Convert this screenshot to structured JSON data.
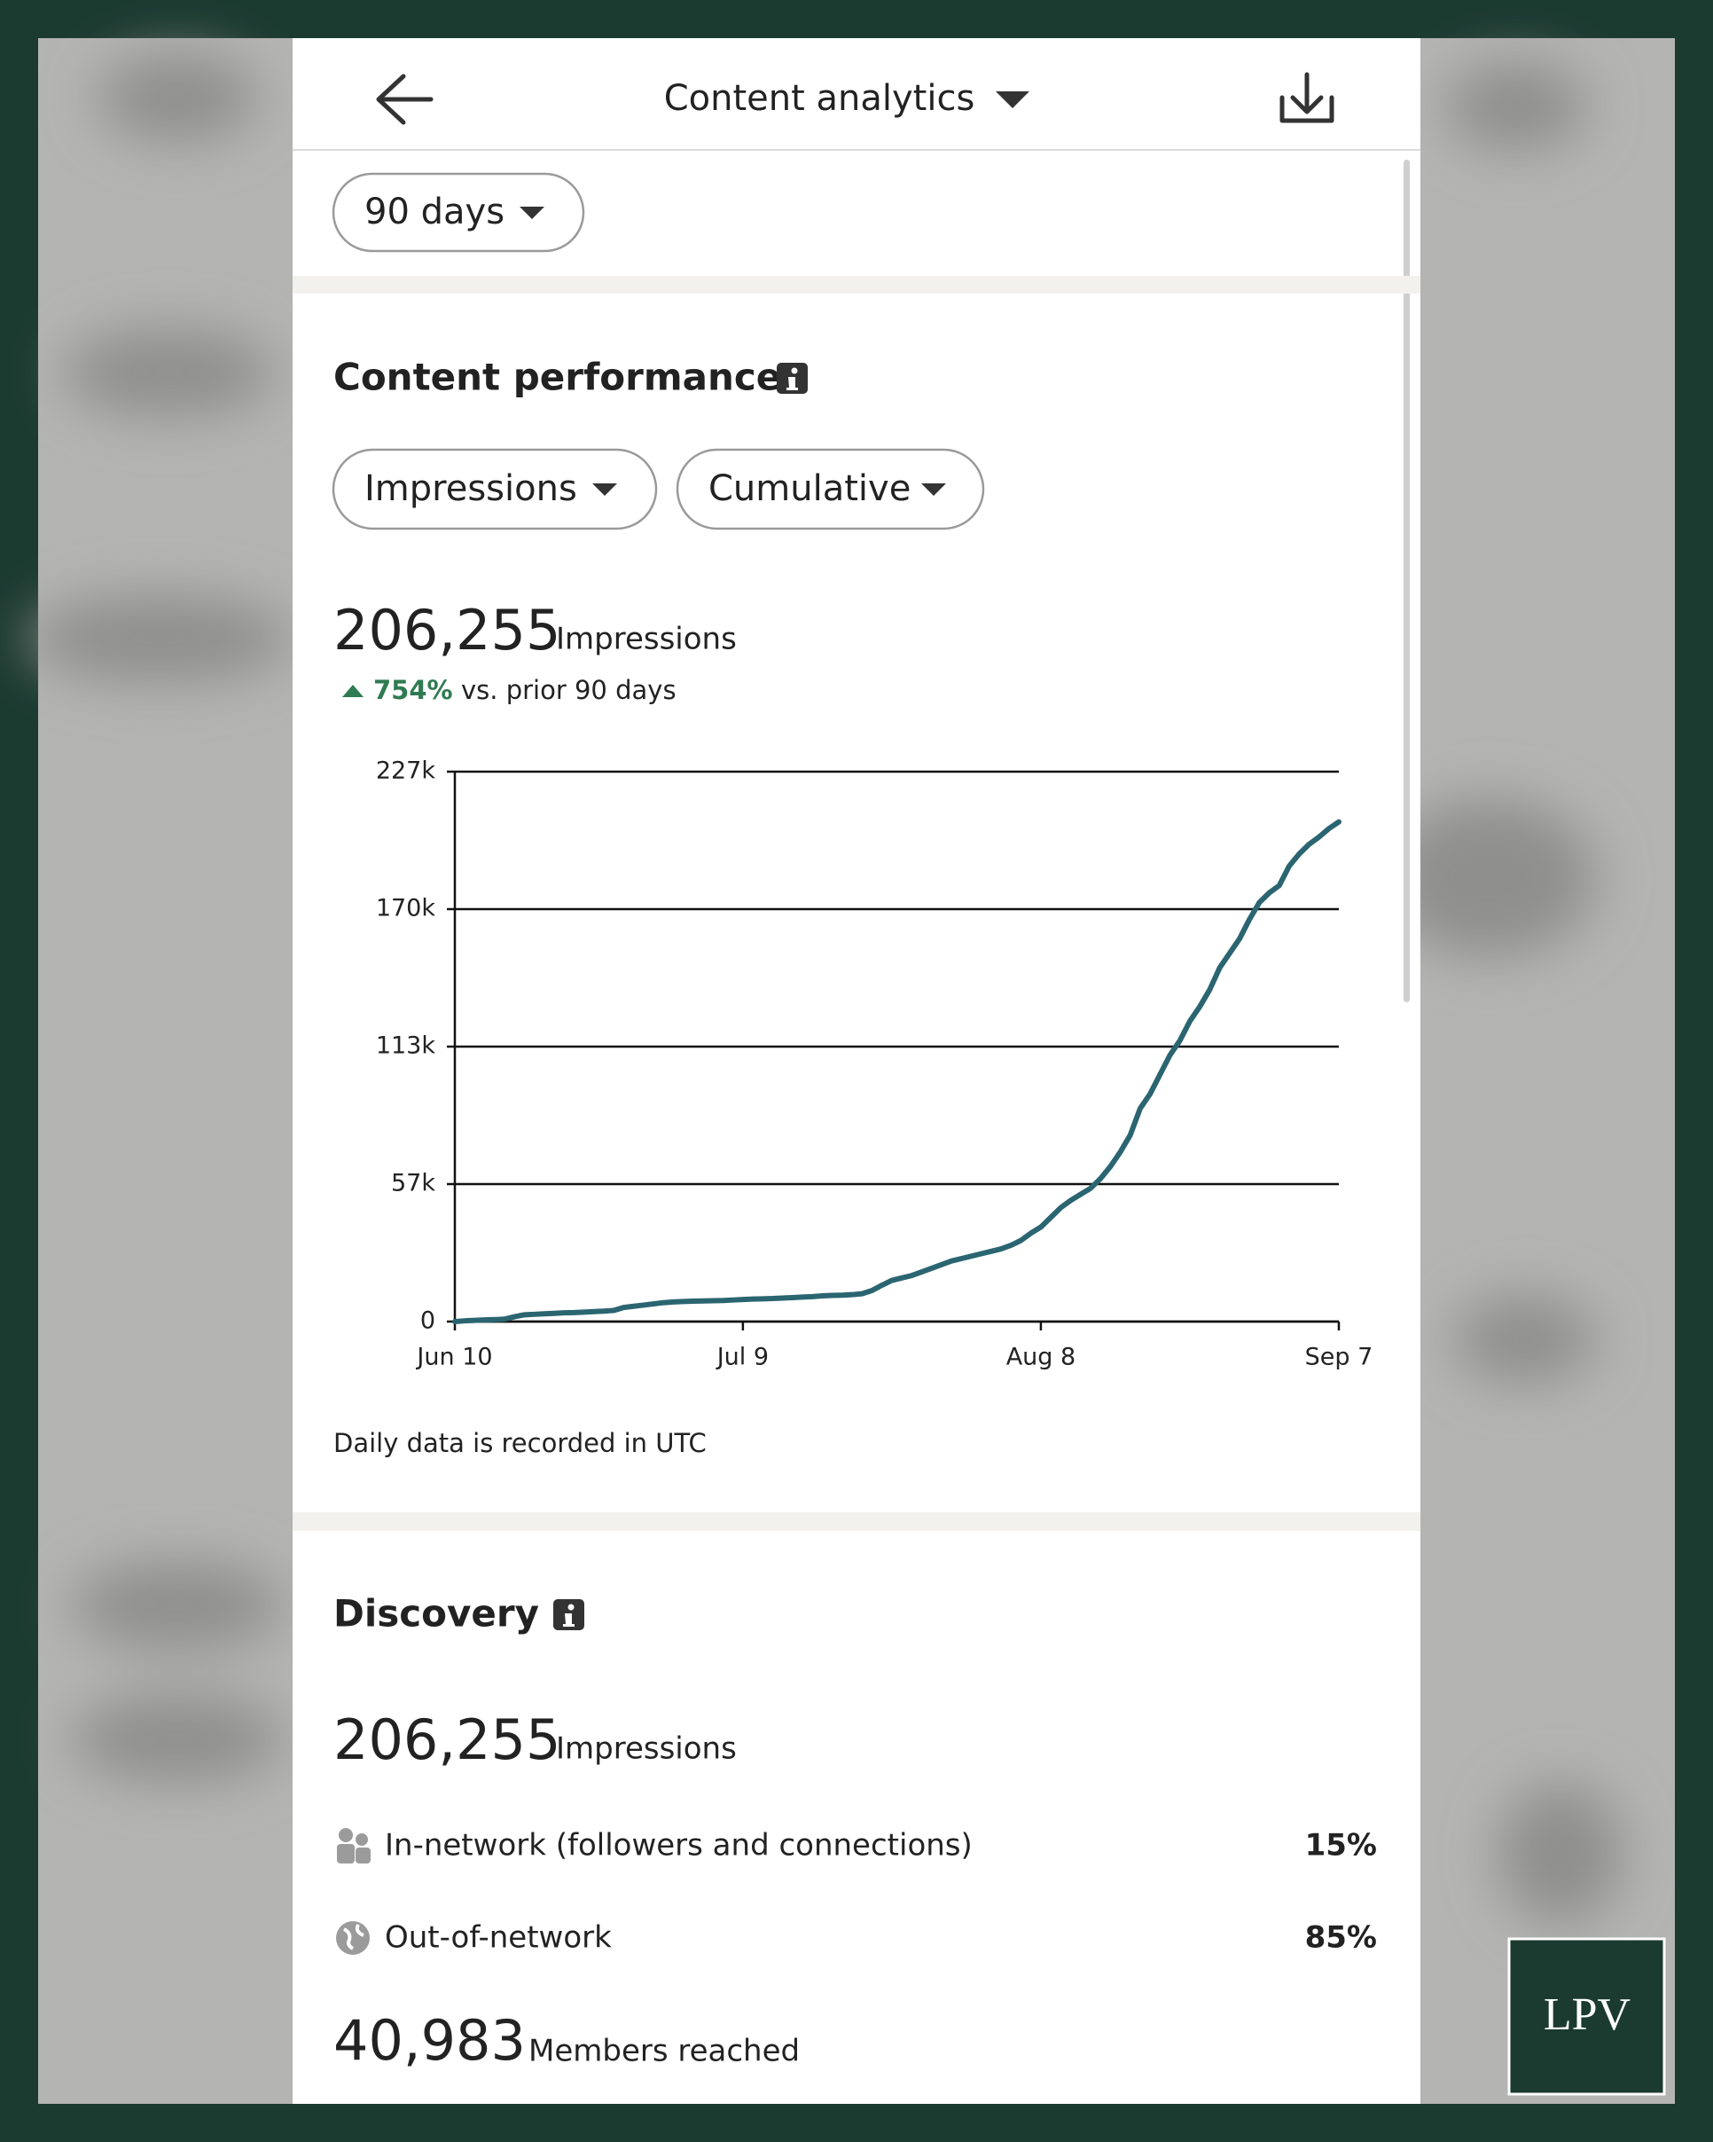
{
  "header": {
    "title": "Content analytics"
  },
  "filters": {
    "period": "90 days",
    "metric": "Impressions",
    "mode": "Cumulative"
  },
  "performance": {
    "title": "Content performance",
    "total": "206,255",
    "total_label": "Impressions",
    "change": "754%",
    "change_label": "vs. prior 90 days",
    "note": "Daily data is recorded in UTC"
  },
  "chart_data": {
    "type": "line",
    "color": "#2a6571",
    "grid": true,
    "ylim": [
      0,
      227000
    ],
    "yticks": [
      0,
      {
        "value": 56750,
        "label": "57k"
      },
      {
        "value": 113500,
        "label": "113k"
      },
      {
        "value": 170250,
        "label": "170k"
      },
      {
        "value": 227000,
        "label": "227k"
      }
    ],
    "categories": [
      "Jun 10",
      null,
      null,
      null,
      null,
      null,
      null,
      null,
      null,
      null,
      null,
      null,
      null,
      null,
      null,
      null,
      null,
      null,
      null,
      null,
      null,
      null,
      null,
      null,
      null,
      null,
      null,
      null,
      null,
      "Jul 9",
      null,
      null,
      null,
      null,
      null,
      null,
      null,
      null,
      null,
      null,
      null,
      null,
      null,
      null,
      null,
      null,
      null,
      null,
      null,
      null,
      null,
      null,
      null,
      null,
      null,
      null,
      null,
      null,
      null,
      "Aug 8",
      null,
      null,
      null,
      null,
      null,
      null,
      null,
      null,
      null,
      null,
      null,
      null,
      null,
      null,
      null,
      null,
      null,
      null,
      null,
      null,
      null,
      null,
      null,
      null,
      null,
      null,
      null,
      null,
      null,
      "Sep 7"
    ],
    "values": [
      0,
      300,
      500,
      700,
      800,
      1000,
      2000,
      2800,
      3000,
      3200,
      3400,
      3600,
      3700,
      3900,
      4100,
      4300,
      4600,
      5800,
      6300,
      6800,
      7300,
      7800,
      8100,
      8300,
      8400,
      8500,
      8600,
      8700,
      8900,
      9100,
      9300,
      9400,
      9500,
      9700,
      9900,
      10100,
      10300,
      10600,
      10800,
      10900,
      11100,
      11500,
      12800,
      15000,
      17000,
      18000,
      19000,
      20500,
      22000,
      23500,
      25000,
      26000,
      27000,
      28000,
      29000,
      30000,
      31500,
      33500,
      36500,
      39000,
      43000,
      47000,
      50000,
      52500,
      55000,
      59000,
      64000,
      70000,
      77000,
      88000,
      94000,
      102000,
      110000,
      116000,
      124000,
      130000,
      137000,
      146000,
      152000,
      158000,
      166000,
      173000,
      177000,
      180000,
      188000,
      193000,
      197000,
      200000,
      203500,
      206255
    ]
  },
  "discovery": {
    "title": "Discovery",
    "impressions": "206,255",
    "impressions_label": "Impressions",
    "rows": [
      {
        "label": "In-network (followers and connections)",
        "value": "15%"
      },
      {
        "label": "Out-of-network",
        "value": "85%"
      }
    ],
    "members": "40,983",
    "members_label": "Members reached"
  },
  "watermark": "LPV"
}
